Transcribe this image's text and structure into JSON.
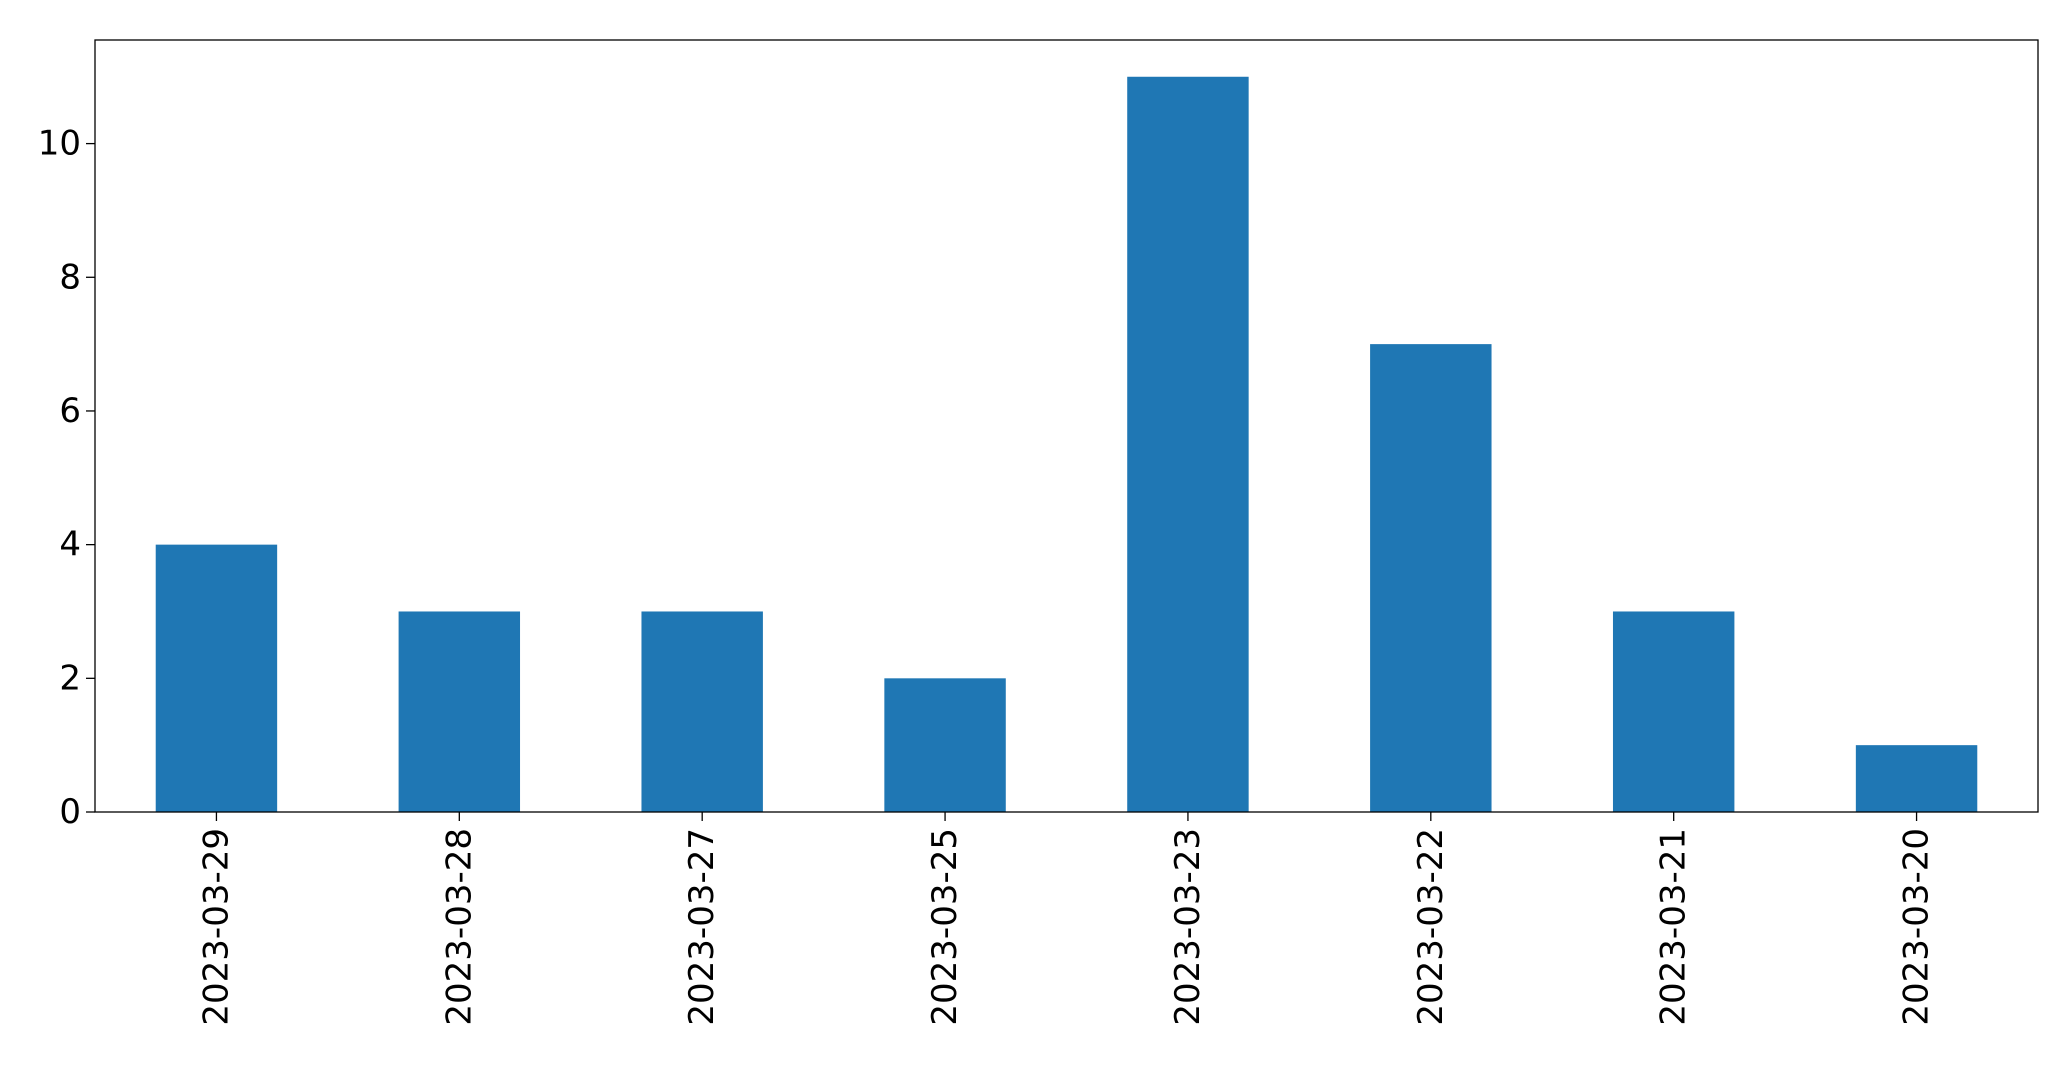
{
  "chart_data": {
    "type": "bar",
    "title": "",
    "xlabel": "",
    "ylabel": "",
    "categories": [
      "2023-03-29",
      "2023-03-28",
      "2023-03-27",
      "2023-03-25",
      "2023-03-23",
      "2023-03-22",
      "2023-03-21",
      "2023-03-20"
    ],
    "values": [
      4,
      3,
      3,
      2,
      11,
      7,
      3,
      1
    ],
    "ylim": [
      0,
      11.55
    ],
    "yticks": [
      0,
      2,
      4,
      6,
      8,
      10
    ],
    "grid": false,
    "legend": "none",
    "bar_color": "#1f77b4"
  }
}
